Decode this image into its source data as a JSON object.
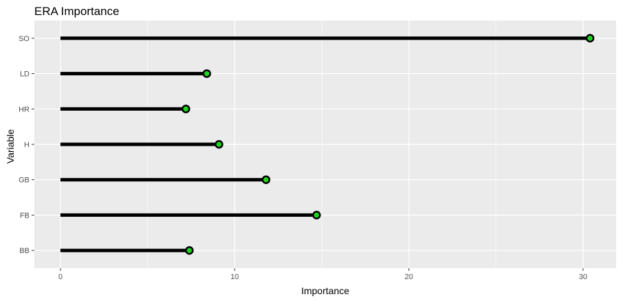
{
  "chart_data": {
    "type": "lollipop",
    "title": "ERA Importance",
    "xlabel": "Importance",
    "ylabel": "Variable",
    "categories": [
      "SO",
      "LD",
      "HR",
      "H",
      "GB",
      "FB",
      "BB"
    ],
    "values": [
      30.4,
      8.4,
      7.2,
      9.1,
      11.8,
      14.7,
      7.4
    ],
    "xlim": [
      -1.5,
      31.9
    ],
    "xticks": [
      0,
      10,
      20,
      30
    ],
    "grid": true,
    "colors": {
      "panel": "#ebebeb",
      "grid": "#ffffff",
      "stem": "#000000",
      "point_fill": "#1fd41f",
      "point_stroke": "#000000"
    }
  }
}
